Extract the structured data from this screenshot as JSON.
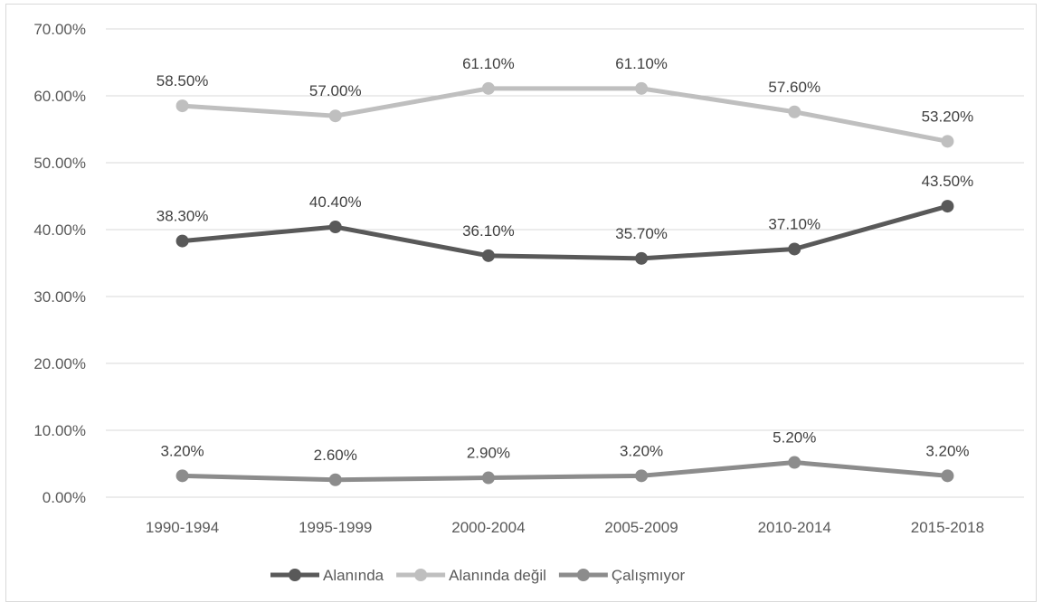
{
  "chart_data": {
    "type": "line",
    "title": "",
    "xlabel": "",
    "ylabel": "",
    "categories": [
      "1990-1994",
      "1995-1999",
      "2000-2004",
      "2005-2009",
      "2010-2014",
      "2015-2018"
    ],
    "ylim": [
      0,
      70
    ],
    "yticks": [
      0,
      10,
      20,
      30,
      40,
      50,
      60,
      70
    ],
    "ytick_labels": [
      "0.00%",
      "10.00%",
      "20.00%",
      "30.00%",
      "40.00%",
      "50.00%",
      "60.00%",
      "70.00%"
    ],
    "grid": true,
    "legend_position": "bottom",
    "series": [
      {
        "name": "Alanında",
        "color": "#595959",
        "values": [
          38.3,
          40.4,
          36.1,
          35.7,
          37.1,
          43.5
        ],
        "labels": [
          "38.30%",
          "40.40%",
          "36.10%",
          "35.70%",
          "37.10%",
          "43.50%"
        ]
      },
      {
        "name": "Alanında değil",
        "color": "#bfbfbf",
        "values": [
          58.5,
          57.0,
          61.1,
          61.1,
          57.6,
          53.2
        ],
        "labels": [
          "58.50%",
          "57.00%",
          "61.10%",
          "61.10%",
          "57.60%",
          "53.20%"
        ]
      },
      {
        "name": "Çalışmıyor",
        "color": "#8c8c8c",
        "values": [
          3.2,
          2.6,
          2.9,
          3.2,
          5.2,
          3.2
        ],
        "labels": [
          "3.20%",
          "2.60%",
          "2.90%",
          "3.20%",
          "5.20%",
          "3.20%"
        ]
      }
    ]
  }
}
